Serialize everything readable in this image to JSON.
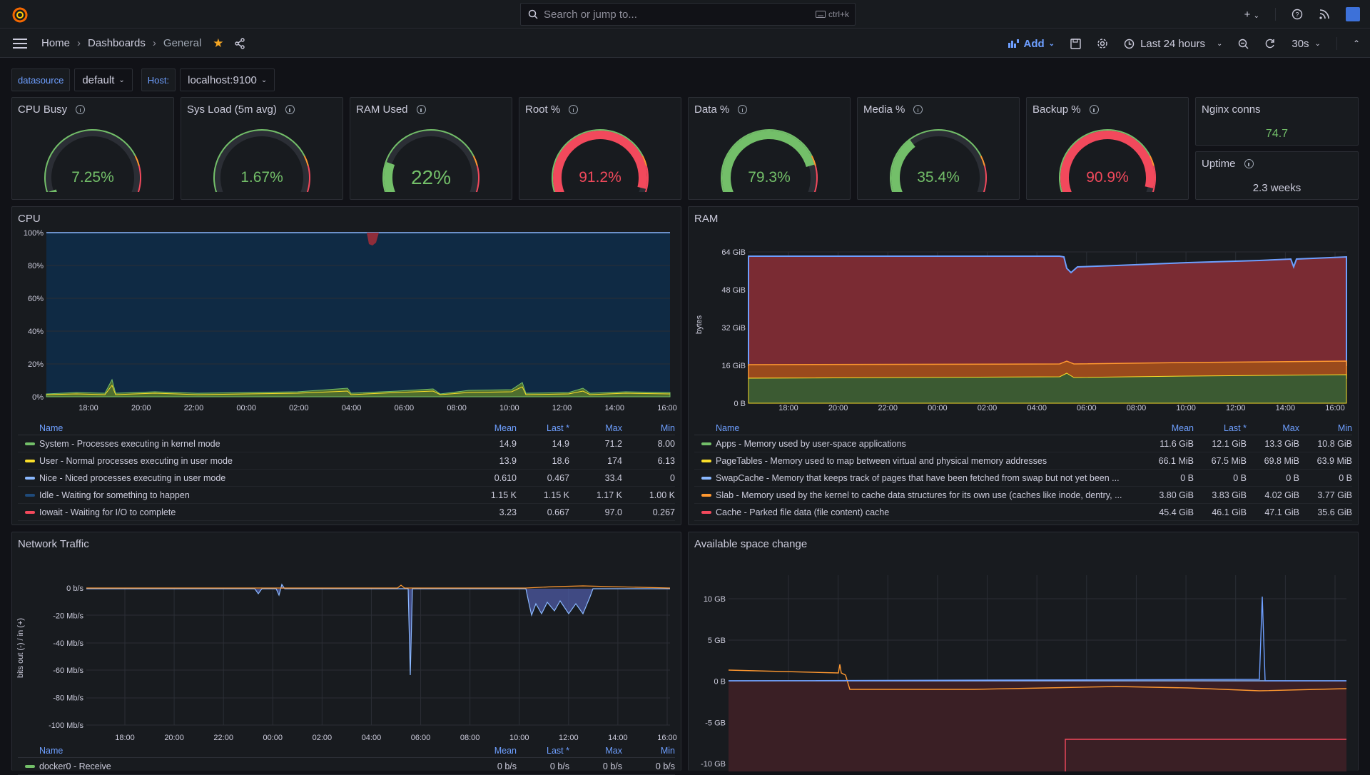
{
  "topbar": {
    "search_placeholder": "Search or jump to...",
    "search_shortcut": "ctrl+k",
    "plus": "+"
  },
  "nav": {
    "breadcrumb": [
      "Home",
      "Dashboards",
      "General"
    ],
    "add_label": "Add",
    "time_range": "Last 24 hours",
    "refresh_interval": "30s"
  },
  "variables": [
    {
      "label": "datasource",
      "value": "default"
    },
    {
      "label": "Host:",
      "value": "localhost:9100"
    }
  ],
  "gauges": [
    {
      "title": "CPU Busy",
      "value": "7.25%",
      "fraction": 0.0725,
      "color": "#73bf69"
    },
    {
      "title": "Sys Load (5m avg)",
      "value": "1.67%",
      "fraction": 0.0167,
      "color": "#73bf69"
    },
    {
      "title": "RAM Used",
      "value": "22%",
      "fraction": 0.22,
      "color": "#73bf69"
    },
    {
      "title": "Root %",
      "value": "91.2%",
      "fraction": 0.912,
      "color": "#f2495c"
    },
    {
      "title": "Data %",
      "value": "79.3%",
      "fraction": 0.793,
      "color": "#73bf69"
    },
    {
      "title": "Media %",
      "value": "35.4%",
      "fraction": 0.354,
      "color": "#73bf69"
    },
    {
      "title": "Backup %",
      "value": "90.9%",
      "fraction": 0.909,
      "color": "#f2495c"
    }
  ],
  "stats": [
    {
      "title": "Nginx conns",
      "value": "74.7"
    },
    {
      "title": "Uptime",
      "value": "2.3 weeks"
    }
  ],
  "x_ticks": [
    "18:00",
    "20:00",
    "22:00",
    "00:00",
    "02:00",
    "04:00",
    "06:00",
    "08:00",
    "10:00",
    "12:00",
    "14:00",
    "16:00"
  ],
  "legend_headers": {
    "name": "Name",
    "mean": "Mean",
    "last": "Last *",
    "max": "Max",
    "min": "Min"
  },
  "cpu": {
    "title": "CPU",
    "y_ticks": [
      "100%",
      "80%",
      "60%",
      "40%",
      "20%",
      "0%"
    ],
    "legend": [
      {
        "name": "System - Processes executing in kernel mode",
        "color": "#73bf69",
        "mean": "14.9",
        "last": "14.9",
        "max": "71.2",
        "min": "8.00"
      },
      {
        "name": "User - Normal processes executing in user mode",
        "color": "#fade2a",
        "mean": "13.9",
        "last": "18.6",
        "max": "174",
        "min": "6.13"
      },
      {
        "name": "Nice - Niced processes executing in user mode",
        "color": "#8ab8ff",
        "mean": "0.610",
        "last": "0.467",
        "max": "33.4",
        "min": "0"
      },
      {
        "name": "Idle - Waiting for something to happen",
        "color": "#1f4a7a",
        "mean": "1.15 K",
        "last": "1.15 K",
        "max": "1.17 K",
        "min": "1.00 K"
      },
      {
        "name": "Iowait - Waiting for I/O to complete",
        "color": "#f2495c",
        "mean": "3.23",
        "last": "0.667",
        "max": "97.0",
        "min": "0.267"
      }
    ]
  },
  "ram": {
    "title": "RAM",
    "y_label": "bytes",
    "y_ticks": [
      "64 GiB",
      "48 GiB",
      "32 GiB",
      "16 GiB",
      "0 B"
    ],
    "legend": [
      {
        "name": "Apps - Memory used by user-space applications",
        "color": "#73bf69",
        "mean": "11.6 GiB",
        "last": "12.1 GiB",
        "max": "13.3 GiB",
        "min": "10.8 GiB"
      },
      {
        "name": "PageTables - Memory used to map between virtual and physical memory addresses",
        "color": "#fade2a",
        "mean": "66.1 MiB",
        "last": "67.5 MiB",
        "max": "69.8 MiB",
        "min": "63.9 MiB"
      },
      {
        "name": "SwapCache - Memory that keeps track of pages that have been fetched from swap but not yet been ...",
        "color": "#8ab8ff",
        "mean": "0 B",
        "last": "0 B",
        "max": "0 B",
        "min": "0 B"
      },
      {
        "name": "Slab - Memory used by the kernel to cache data structures for its own use (caches like inode, dentry, ...",
        "color": "#ff9830",
        "mean": "3.80 GiB",
        "last": "3.83 GiB",
        "max": "4.02 GiB",
        "min": "3.77 GiB"
      },
      {
        "name": "Cache - Parked file data (file content) cache",
        "color": "#f2495c",
        "mean": "45.4 GiB",
        "last": "46.1 GiB",
        "max": "47.1 GiB",
        "min": "35.6 GiB"
      }
    ]
  },
  "net": {
    "title": "Network Traffic",
    "y_label": "bits out (-) / in (+)",
    "y_ticks": [
      "0 b/s",
      "-20 Mb/s",
      "-40 Mb/s",
      "-60 Mb/s",
      "-80 Mb/s",
      "-100 Mb/s"
    ],
    "legend": [
      {
        "name": "docker0 - Receive",
        "color": "#73bf69",
        "mean": "0 b/s",
        "last": "0 b/s",
        "max": "0 b/s",
        "min": "0 b/s"
      }
    ]
  },
  "space": {
    "title": "Available space change",
    "y_ticks": [
      "10 GB",
      "5 GB",
      "0 B",
      "-5 GB",
      "-10 GB"
    ]
  }
}
